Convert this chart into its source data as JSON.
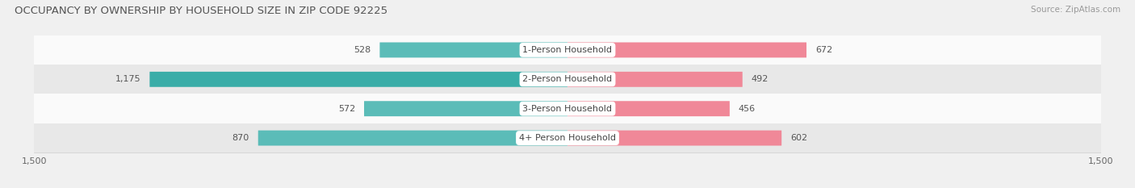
{
  "title": "OCCUPANCY BY OWNERSHIP BY HOUSEHOLD SIZE IN ZIP CODE 92225",
  "source": "Source: ZipAtlas.com",
  "categories": [
    "1-Person Household",
    "2-Person Household",
    "3-Person Household",
    "4+ Person Household"
  ],
  "owner_values": [
    528,
    1175,
    572,
    870
  ],
  "renter_values": [
    672,
    492,
    456,
    602
  ],
  "owner_color": "#5bbcb8",
  "owner_color_2": "#3aada8",
  "renter_color": "#f08898",
  "background_color": "#f0f0f0",
  "row_bg_colors": [
    "#fafafa",
    "#e8e8e8",
    "#fafafa",
    "#e8e8e8"
  ],
  "xlim": 1500,
  "title_fontsize": 9.5,
  "label_fontsize": 8,
  "tick_fontsize": 8,
  "source_fontsize": 7.5,
  "bar_height": 0.52,
  "value_color": "#555555",
  "category_color": "#444444"
}
